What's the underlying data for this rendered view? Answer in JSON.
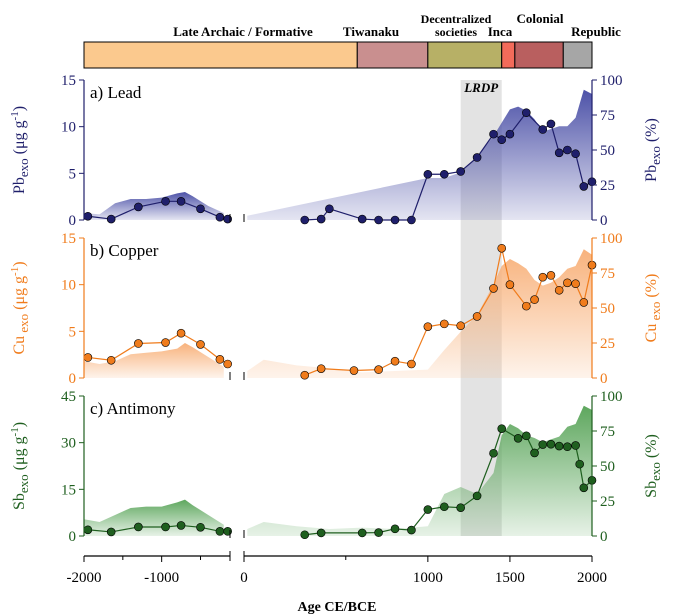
{
  "periods": [
    {
      "label": "Late Archaic / Formative",
      "start": -2000,
      "end": 570,
      "color": "#fbc98e"
    },
    {
      "label": "Tiwanaku",
      "start": 570,
      "end": 1000,
      "color": "#c98f8f"
    },
    {
      "label": "Decentralized societies",
      "label_line1": "Decentralized",
      "label_line2": "societies",
      "start": 1000,
      "end": 1450,
      "color": "#b7b066"
    },
    {
      "label": "Inca",
      "start": 1450,
      "end": 1530,
      "color": "#f26b5a"
    },
    {
      "label": "Colonial",
      "start": 1530,
      "end": 1825,
      "color": "#b95f5f"
    },
    {
      "label": "Republic",
      "start": 1825,
      "end": 2000,
      "color": "#a6a6a6"
    }
  ],
  "lrdp": {
    "label": "LRDP",
    "start": 1200,
    "end": 1450
  },
  "xaxis": {
    "label": "Age CE/BCE",
    "ticks": [
      -2000,
      -1000,
      0,
      1000,
      1500,
      2000
    ],
    "tick_labels": [
      "-2000",
      "-1000",
      "0",
      "1000",
      "1500",
      "2000"
    ],
    "minor_ticks": [
      -1500,
      -500,
      500
    ]
  },
  "chart_data": [
    {
      "type": "line",
      "panel_label": "a) Lead",
      "ylabel_left": {
        "base": "Pb",
        "sub": "exo",
        "unit": " (μg g",
        "sup": "-1",
        "close": ")"
      },
      "ylabel_right": {
        "base": "Pb",
        "sub": "exo",
        "unit": " (%)"
      },
      "ylim": [
        0,
        15
      ],
      "yticks": [
        0,
        5,
        10,
        15
      ],
      "y2lim": [
        0,
        100
      ],
      "y2ticks": [
        0,
        25,
        50,
        75,
        100
      ],
      "color": "#1f1f6b",
      "fill_color": "#4d52a8",
      "x": [
        -1950,
        -1650,
        -1300,
        -950,
        -750,
        -500,
        -250,
        -150,
        250,
        350,
        400,
        600,
        700,
        800,
        900,
        1000,
        1100,
        1200,
        1300,
        1400,
        1450,
        1500,
        1600,
        1700,
        1750,
        1800,
        1850,
        1900,
        1950,
        2000
      ],
      "y": [
        0.4,
        0.1,
        1.4,
        2.0,
        2.0,
        1.2,
        0.3,
        0.1,
        0.0,
        0.1,
        1.2,
        0.1,
        0.0,
        0.0,
        0.0,
        4.9,
        4.9,
        5.2,
        6.7,
        9.2,
        8.6,
        9.2,
        11.5,
        9.7,
        10.3,
        7.2,
        7.5,
        7.1,
        3.6,
        4.1
      ],
      "pct_x": [
        -2000,
        -1800,
        -1600,
        -1400,
        -1200,
        -1000,
        -800,
        -700,
        -600,
        -400,
        -200,
        -100,
        1000,
        1100,
        1200,
        1300,
        1400,
        1500,
        1550,
        1600,
        1650,
        1700,
        1750,
        1800,
        1850,
        1900,
        1950,
        2000
      ],
      "pct_y": [
        5,
        4,
        12,
        15,
        15,
        16,
        19,
        20,
        17,
        10,
        5,
        3,
        30,
        30,
        34,
        45,
        60,
        79,
        81,
        78,
        72,
        63,
        65,
        67,
        67,
        73,
        93,
        90
      ]
    },
    {
      "type": "line",
      "panel_label": "b) Copper",
      "ylabel_left": {
        "base": "Cu",
        "sub": " exo",
        "unit": " (μg g",
        "sup": "-1",
        "close": ")"
      },
      "ylabel_right": {
        "base": "Cu",
        "sub": " exo",
        "unit": " (%)"
      },
      "ylim": [
        0,
        15
      ],
      "yticks": [
        0,
        5,
        10,
        15
      ],
      "y2lim": [
        0,
        100
      ],
      "y2ticks": [
        0,
        25,
        50,
        75,
        100
      ],
      "color": "#f07c1c",
      "fill_color": "#f8b27c",
      "x": [
        -1950,
        -1650,
        -1300,
        -950,
        -750,
        -500,
        -250,
        -150,
        250,
        350,
        550,
        700,
        800,
        900,
        1000,
        1100,
        1200,
        1300,
        1400,
        1450,
        1500,
        1600,
        1650,
        1700,
        1750,
        1800,
        1850,
        1900,
        1950,
        2000
      ],
      "y": [
        2.2,
        1.9,
        3.7,
        3.8,
        4.8,
        3.6,
        2.0,
        1.5,
        0.3,
        1.0,
        0.8,
        0.9,
        1.8,
        1.5,
        5.5,
        5.8,
        5.6,
        6.6,
        9.6,
        13.9,
        10.0,
        7.7,
        8.4,
        10.8,
        11.0,
        9.4,
        10.2,
        10.1,
        8.1,
        12.1
      ],
      "pct_x": [
        -2000,
        -1800,
        -1600,
        -1400,
        -1200,
        -1000,
        -800,
        -700,
        -600,
        -400,
        -200,
        -100,
        0,
        200,
        400,
        600,
        800,
        1000,
        1100,
        1200,
        1300,
        1400,
        1450,
        1500,
        1550,
        1600,
        1650,
        1700,
        1750,
        1800,
        1850,
        1900,
        1950,
        2000
      ],
      "pct_y": [
        12,
        10,
        12,
        17,
        18,
        19,
        21,
        25,
        22,
        15,
        8,
        5,
        13,
        9,
        7,
        4,
        5,
        6,
        20,
        33,
        45,
        67,
        80,
        85,
        82,
        78,
        70,
        66,
        68,
        72,
        78,
        80,
        92,
        88
      ]
    },
    {
      "type": "line",
      "panel_label": "c) Antimony",
      "ylabel_left": {
        "base": "Sb",
        "sub": "exo",
        "unit": " (μg g",
        "sup": "-1",
        "close": ")"
      },
      "ylabel_right": {
        "base": "Sb",
        "sub": "exo",
        "unit": " (%)"
      },
      "ylim": [
        0,
        45
      ],
      "yticks": [
        0,
        15,
        30,
        45
      ],
      "y2lim": [
        0,
        100
      ],
      "y2ticks": [
        0,
        25,
        50,
        75,
        100
      ],
      "color": "#1f5f1f",
      "fill_color": "#5ea75e",
      "x": [
        -1950,
        -1650,
        -1300,
        -950,
        -750,
        -500,
        -250,
        -150,
        250,
        350,
        600,
        700,
        800,
        900,
        1000,
        1100,
        1200,
        1300,
        1400,
        1450,
        1550,
        1600,
        1650,
        1700,
        1750,
        1800,
        1850,
        1900,
        1925,
        1950,
        2000
      ],
      "y": [
        2.0,
        1.3,
        2.9,
        2.9,
        3.4,
        2.8,
        1.5,
        1.5,
        0.4,
        1.0,
        1.0,
        1.1,
        2.3,
        1.9,
        8.5,
        9.4,
        9.1,
        12.9,
        26.6,
        34.5,
        31.4,
        32.2,
        26.7,
        29.4,
        29.5,
        28.9,
        28.7,
        29.1,
        23.1,
        15.5,
        17.9
      ],
      "pct_x": [
        -2000,
        -1800,
        -1600,
        -1400,
        -1200,
        -1000,
        -800,
        -700,
        -600,
        -400,
        -200,
        -100,
        0,
        200,
        400,
        600,
        800,
        1000,
        1100,
        1200,
        1300,
        1400,
        1450,
        1500,
        1550,
        1600,
        1650,
        1700,
        1750,
        1800,
        1850,
        1900,
        1950,
        2000
      ],
      "pct_y": [
        12,
        10,
        15,
        20,
        21,
        21,
        24,
        26,
        22,
        15,
        8,
        5,
        10,
        7,
        5,
        6,
        5,
        7,
        30,
        35,
        30,
        45,
        72,
        80,
        77,
        72,
        70,
        67,
        69,
        71,
        78,
        80,
        93,
        90
      ]
    }
  ]
}
